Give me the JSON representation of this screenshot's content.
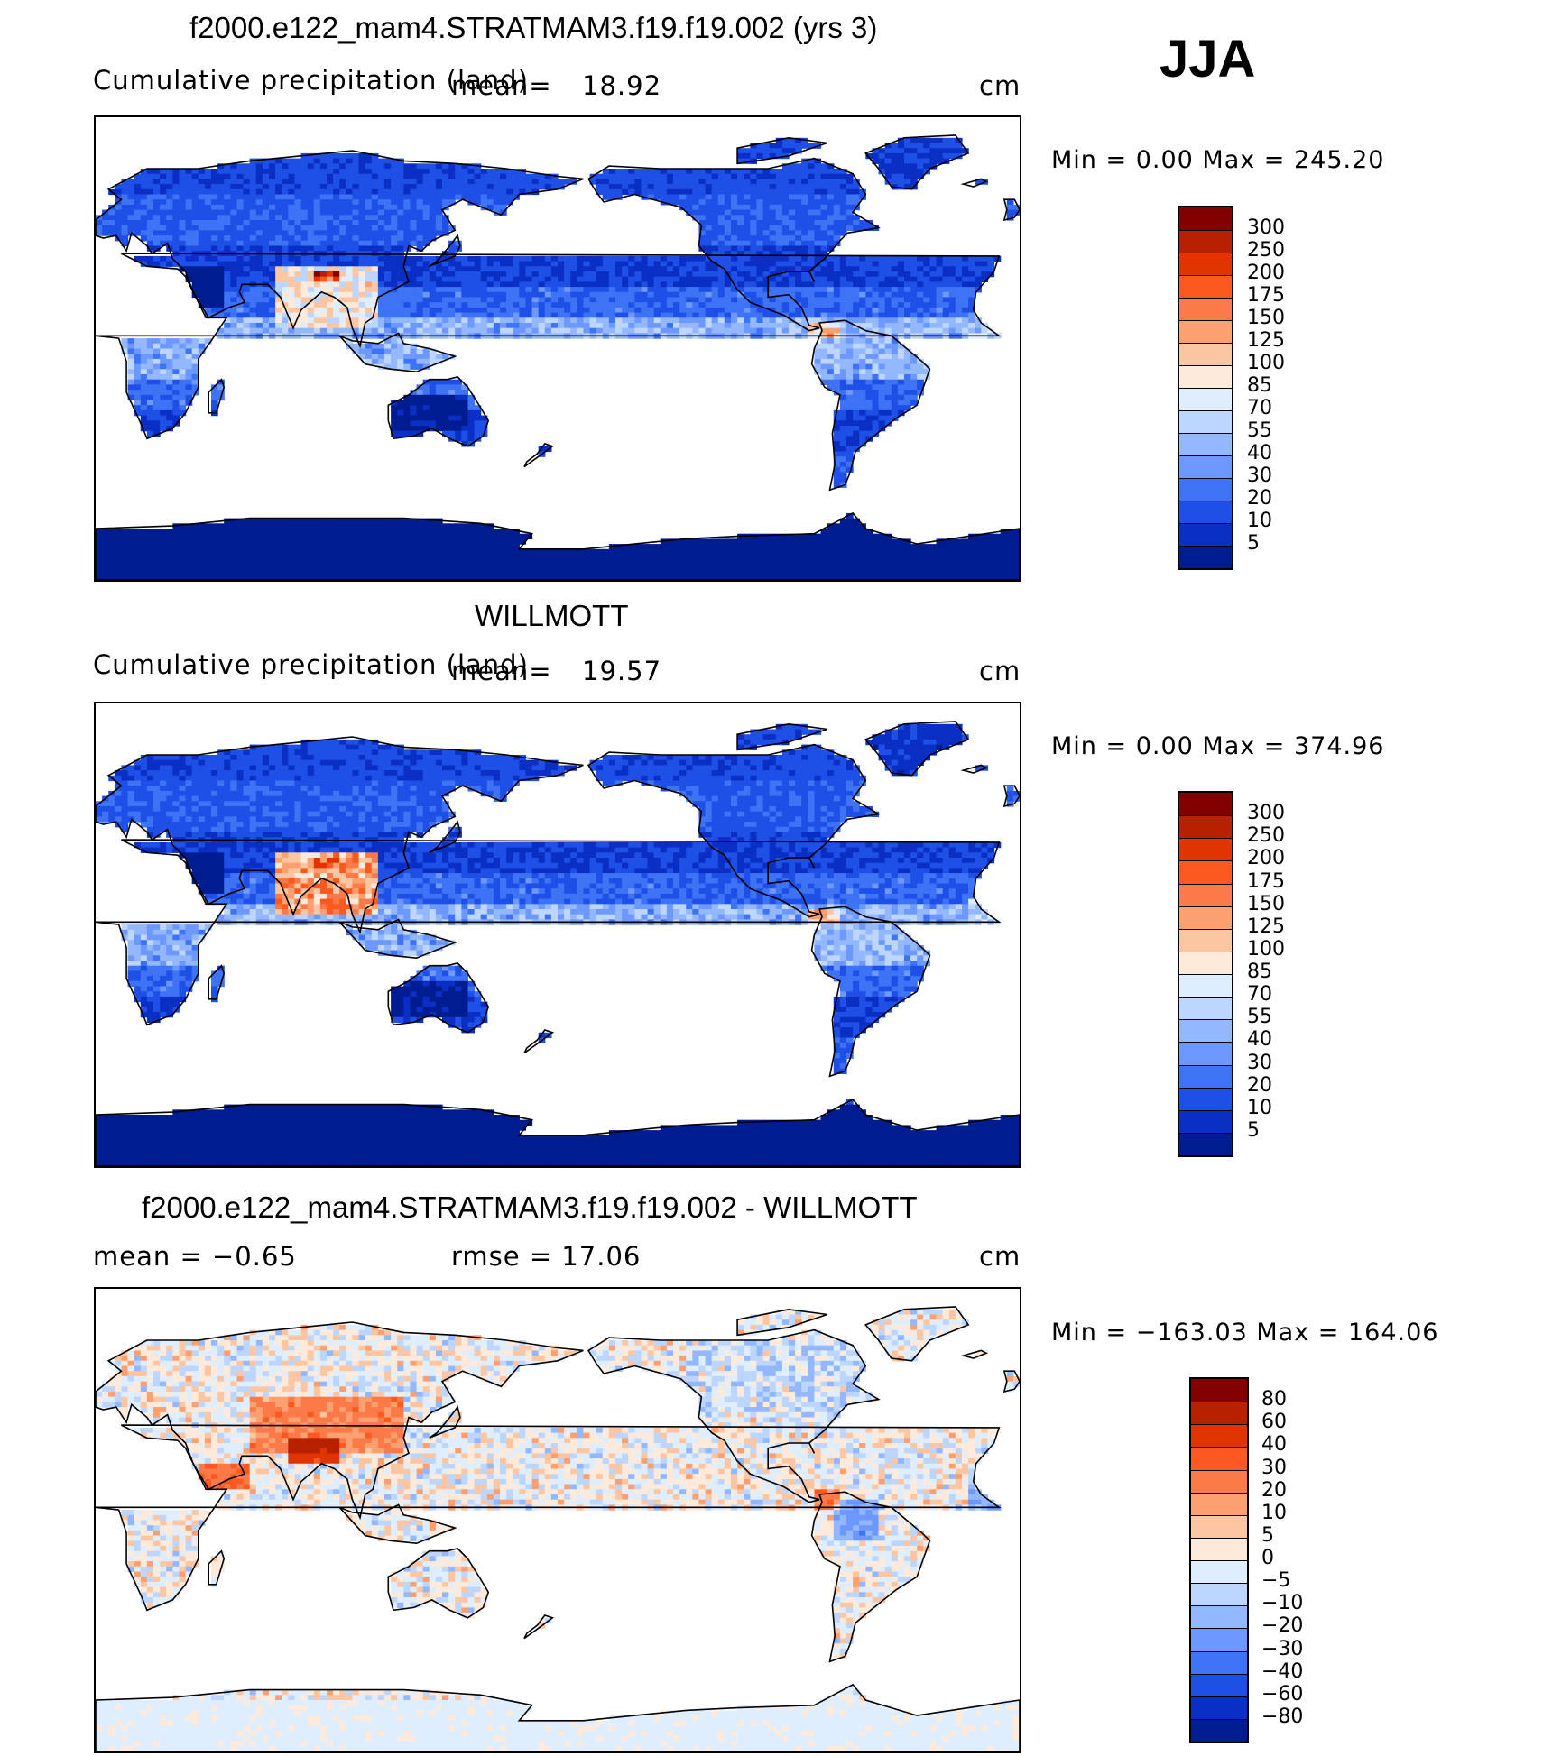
{
  "season": "JJA",
  "panels": [
    {
      "title": "f2000.e122_mam4.STRATMAM3.f19.f19.002 (yrs 3)",
      "left_label": "Cumulative precipitation (land)",
      "mean_label": "mean=",
      "mean_value": "18.92",
      "units": "cm",
      "minmax": "Min  =     0.00  Max  =  245.20",
      "colorbar_labels": [
        "300",
        "250",
        "200",
        "175",
        "150",
        "125",
        "100",
        "85",
        "70",
        "55",
        "40",
        "30",
        "20",
        "10",
        "5"
      ],
      "colorbar_colors": [
        "#820000",
        "#b82100",
        "#e03500",
        "#fa5a1f",
        "#fb7a48",
        "#fca071",
        "#fdc6a3",
        "#feeadb",
        "#dfeeff",
        "#bcd6ff",
        "#93b8ff",
        "#6c98ff",
        "#3f73f5",
        "#1e50e8",
        "#0a2fc4",
        "#001c91"
      ],
      "map_variant": "model"
    },
    {
      "title": "WILLMOTT",
      "left_label": "Cumulative precipitation (land)",
      "mean_label": "mean=",
      "mean_value": "19.57",
      "units": "cm",
      "minmax": "Min  =     0.00  Max  =  374.96",
      "colorbar_labels": [
        "300",
        "250",
        "200",
        "175",
        "150",
        "125",
        "100",
        "85",
        "70",
        "55",
        "40",
        "30",
        "20",
        "10",
        "5"
      ],
      "colorbar_colors": [
        "#820000",
        "#b82100",
        "#e03500",
        "#fa5a1f",
        "#fb7a48",
        "#fca071",
        "#fdc6a3",
        "#feeadb",
        "#dfeeff",
        "#bcd6ff",
        "#93b8ff",
        "#6c98ff",
        "#3f73f5",
        "#1e50e8",
        "#0a2fc4",
        "#001c91"
      ],
      "map_variant": "obs"
    },
    {
      "title": "f2000.e122_mam4.STRATMAM3.f19.f19.002 - WILLMOTT",
      "left_label": "mean  =    −0.65",
      "rmse_label": "rmse  =    17.06",
      "units": "cm",
      "minmax": "Min  = −163.03  Max  =  164.06",
      "colorbar_labels": [
        "80",
        "60",
        "40",
        "30",
        "20",
        "10",
        "5",
        "0",
        "−5",
        "−10",
        "−20",
        "−30",
        "−40",
        "−60",
        "−80"
      ],
      "colorbar_colors": [
        "#820000",
        "#b82100",
        "#e03500",
        "#fa5a1f",
        "#fb7a48",
        "#fca071",
        "#fdc6a3",
        "#feeadb",
        "#dfeeff",
        "#bcd6ff",
        "#93b8ff",
        "#6c98ff",
        "#3f73f5",
        "#1e50e8",
        "#0a2fc4",
        "#001c91"
      ],
      "map_variant": "diff"
    }
  ]
}
